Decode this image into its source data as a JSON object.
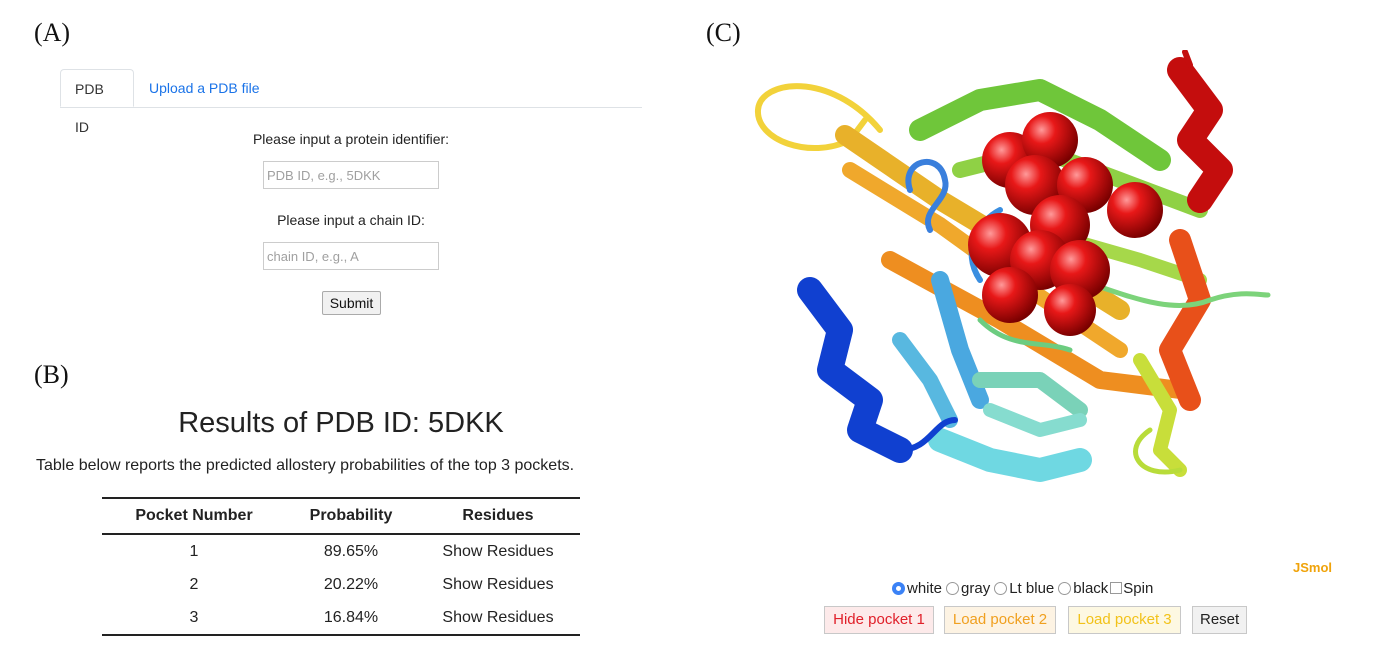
{
  "panel_labels": {
    "a": "(A)",
    "b": "(B)",
    "c": "(C)"
  },
  "form": {
    "tabs": [
      {
        "label": "PDB ID",
        "active": true
      },
      {
        "label": "Upload a PDB file",
        "active": false
      }
    ],
    "protein_label": "Please input a protein identifier:",
    "protein_placeholder": "PDB ID, e.g., 5DKK",
    "protein_value": "",
    "chain_label": "Please input a chain ID:",
    "chain_placeholder": "chain ID, e.g., A",
    "chain_value": "",
    "submit_label": "Submit"
  },
  "results": {
    "title": "Results of PDB ID: 5DKK",
    "description": "Table below reports the predicted allostery probabilities of the top 3 pockets.",
    "columns": [
      "Pocket Number",
      "Probability",
      "Residues"
    ],
    "rows": [
      {
        "pocket": "1",
        "probability": "89.65%",
        "residues": "Show Residues"
      },
      {
        "pocket": "2",
        "probability": "20.22%",
        "residues": "Show Residues"
      },
      {
        "pocket": "3",
        "probability": "16.84%",
        "residues": "Show Residues"
      }
    ]
  },
  "viewer": {
    "logo": "JSmol",
    "background_options": [
      {
        "label": "white",
        "selected": true
      },
      {
        "label": "gray",
        "selected": false
      },
      {
        "label": "Lt blue",
        "selected": false
      },
      {
        "label": "black",
        "selected": false
      }
    ],
    "spin_label": "Spin",
    "spin_checked": false,
    "buttons": [
      {
        "label": "Hide pocket 1",
        "color": "#e0202a",
        "bg": "#fdeaea"
      },
      {
        "label": "Load pocket 2",
        "color": "#f0a020",
        "bg": "#fdf3e3"
      },
      {
        "label": "Load pocket 3",
        "color": "#f2c21a",
        "bg": "#fdf8e2"
      },
      {
        "label": "Reset",
        "color": "#222222",
        "bg": "#f1f1f1"
      }
    ]
  }
}
